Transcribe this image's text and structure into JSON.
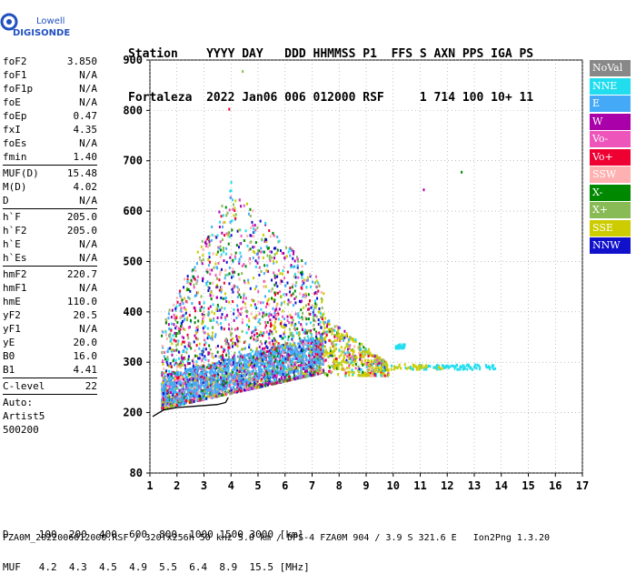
{
  "logo": {
    "line1": "Lowell",
    "line2": "DIGISONDE",
    "color": "#2050c0"
  },
  "header": {
    "labels": "Station    YYYY DAY   DDD HHMMSS P1  FFS S AXN PPS IGA PS",
    "values": "Fortaleza  2022 Jan06 006 012000 RSF     1 714 100 10+ 11"
  },
  "params": [
    {
      "k": "foF2",
      "v": "3.850"
    },
    {
      "k": "foF1",
      "v": "N/A"
    },
    {
      "k": "foF1p",
      "v": "N/A"
    },
    {
      "k": "foE",
      "v": "N/A"
    },
    {
      "k": "foEp",
      "v": "0.47"
    },
    {
      "k": "fxI",
      "v": "4.35"
    },
    {
      "k": "foEs",
      "v": "N/A"
    },
    {
      "k": "fmin",
      "v": "1.40"
    },
    {
      "sep": true
    },
    {
      "k": "MUF(D)",
      "v": "15.48"
    },
    {
      "k": "M(D)",
      "v": "4.02"
    },
    {
      "k": "D",
      "v": "N/A"
    },
    {
      "sep": true
    },
    {
      "k": "h`F",
      "v": "205.0"
    },
    {
      "k": "h`F2",
      "v": "205.0"
    },
    {
      "k": "h`E",
      "v": "N/A"
    },
    {
      "k": "h`Es",
      "v": "N/A"
    },
    {
      "sep": true
    },
    {
      "k": "hmF2",
      "v": "220.7"
    },
    {
      "k": "hmF1",
      "v": "N/A"
    },
    {
      "k": "hmE",
      "v": "110.0"
    },
    {
      "k": "yF2",
      "v": "20.5"
    },
    {
      "k": "yF1",
      "v": "N/A"
    },
    {
      "k": "yE",
      "v": "20.0"
    },
    {
      "k": "B0",
      "v": "16.0"
    },
    {
      "k": "B1",
      "v": "4.41"
    },
    {
      "sep": true
    },
    {
      "k": "C-level",
      "v": "22"
    },
    {
      "sep": true
    },
    {
      "plain": "Auto:"
    },
    {
      "plain": "Artist5"
    },
    {
      "plain": "500200"
    }
  ],
  "legend": [
    {
      "label": "NoVal",
      "color": "#888888"
    },
    {
      "label": "NNE",
      "color": "#22ddee"
    },
    {
      "label": "E",
      "color": "#44aaf8"
    },
    {
      "label": "W",
      "color": "#aa00aa"
    },
    {
      "label": "Vo-",
      "color": "#ee55bb"
    },
    {
      "label": "Vo+",
      "color": "#ee0033"
    },
    {
      "label": "SSW",
      "color": "#ffb0b0"
    },
    {
      "label": "X-",
      "color": "#008800"
    },
    {
      "label": "X+",
      "color": "#88bb55"
    },
    {
      "label": "SSE",
      "color": "#cccc00"
    },
    {
      "label": "NNW",
      "color": "#1111cc"
    }
  ],
  "footer": {
    "d_row": "D     100  200  400  600  800  1000 1500 3000 [km]",
    "muf_row": "MUF   4.2  4.3  4.5  4.9  5.5  6.4  8.9  15.5 [MHz]",
    "file_line": "FZA0M_2022006012000.RSF / 320fx256h 50 kHz 5.0 km / DPS-4 FZA0M 904 / 3.9 S 321.6 E   Ion2Png 1.3.20"
  },
  "chart_data": {
    "type": "scatter",
    "xlim": [
      1,
      17
    ],
    "ylim": [
      80,
      900
    ],
    "xticks": [
      1,
      2,
      3,
      4,
      5,
      6,
      7,
      8,
      9,
      10,
      11,
      12,
      13,
      14,
      15,
      16,
      17
    ],
    "yticks": [
      80,
      200,
      300,
      400,
      500,
      600,
      700,
      800,
      900
    ],
    "grid": true,
    "trace": {
      "x": [
        1.1,
        1.5,
        2.0,
        2.5,
        3.0,
        3.5,
        3.8,
        3.9
      ],
      "y": [
        192,
        205,
        210,
        212,
        214,
        216,
        220,
        230
      ]
    },
    "clusters": [
      {
        "x": [
          1.4,
          7.4
        ],
        "y": [
          210,
          620
        ],
        "density": "high"
      },
      {
        "x": [
          7.4,
          9.8
        ],
        "y": [
          280,
          400
        ],
        "density": "medium"
      },
      {
        "x": [
          9.8,
          13.8
        ],
        "y": [
          285,
          340
        ],
        "density": "low"
      }
    ]
  }
}
